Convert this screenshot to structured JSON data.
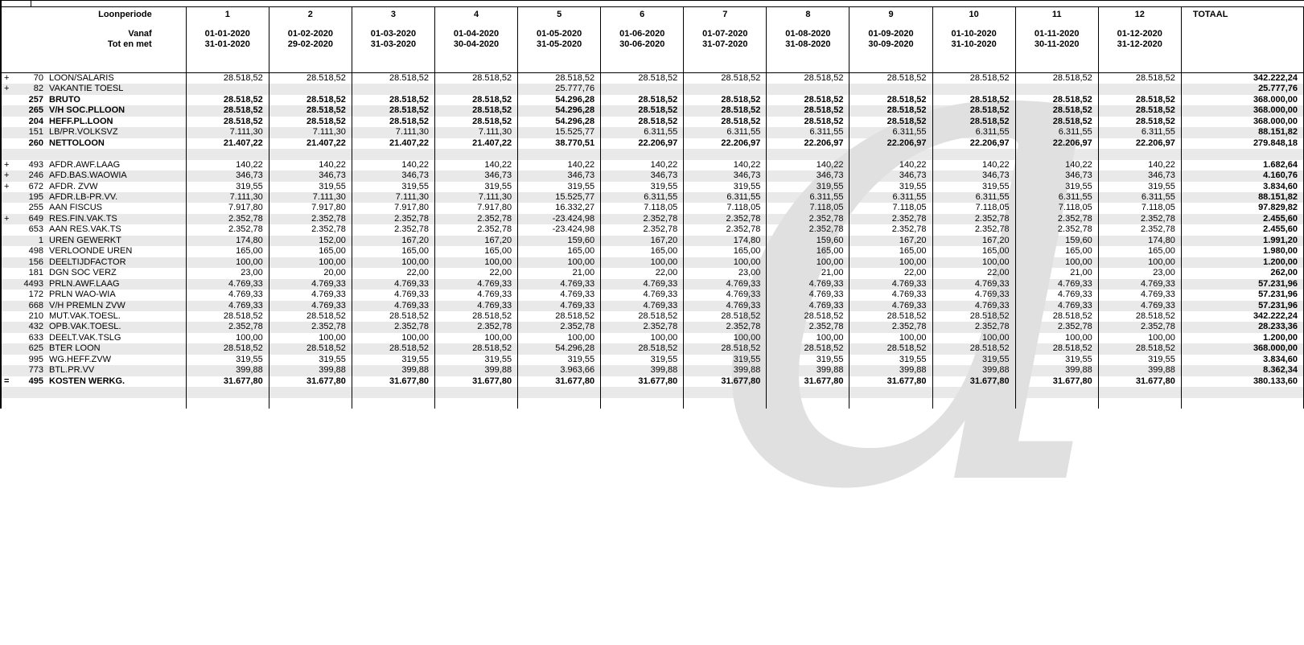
{
  "header": {
    "period_label": "Loonperiode",
    "vanaf_label": "Vanaf",
    "tot_label": "Tot en met",
    "totaal_label": "TOTAAL",
    "periods": [
      {
        "num": "1",
        "from": "01-01-2020",
        "to": "31-01-2020"
      },
      {
        "num": "2",
        "from": "01-02-2020",
        "to": "29-02-2020"
      },
      {
        "num": "3",
        "from": "01-03-2020",
        "to": "31-03-2020"
      },
      {
        "num": "4",
        "from": "01-04-2020",
        "to": "30-04-2020"
      },
      {
        "num": "5",
        "from": "01-05-2020",
        "to": "31-05-2020"
      },
      {
        "num": "6",
        "from": "01-06-2020",
        "to": "30-06-2020"
      },
      {
        "num": "7",
        "from": "01-07-2020",
        "to": "31-07-2020"
      },
      {
        "num": "8",
        "from": "01-08-2020",
        "to": "31-08-2020"
      },
      {
        "num": "9",
        "from": "01-09-2020",
        "to": "30-09-2020"
      },
      {
        "num": "10",
        "from": "01-10-2020",
        "to": "31-10-2020"
      },
      {
        "num": "11",
        "from": "01-11-2020",
        "to": "30-11-2020"
      },
      {
        "num": "12",
        "from": "01-12-2020",
        "to": "31-12-2020"
      }
    ]
  },
  "colors": {
    "stripe": "#e9e9e9",
    "border": "#000000",
    "watermark": "#e0e0e0"
  },
  "watermark": {
    "glyph": "a"
  },
  "rows": [
    {
      "prefix": "+",
      "code": "70",
      "label": "LOON/SALARIS",
      "bold": false,
      "values": [
        "28.518,52",
        "28.518,52",
        "28.518,52",
        "28.518,52",
        "28.518,52",
        "28.518,52",
        "28.518,52",
        "28.518,52",
        "28.518,52",
        "28.518,52",
        "28.518,52",
        "28.518,52"
      ],
      "total": "342.222,24"
    },
    {
      "prefix": "+",
      "code": "82",
      "label": "VAKANTIE TOESL",
      "bold": false,
      "values": [
        "",
        "",
        "",
        "",
        "25.777,76",
        "",
        "",
        "",
        "",
        "",
        "",
        ""
      ],
      "total": "25.777,76"
    },
    {
      "prefix": "",
      "code": "257",
      "label": "BRUTO",
      "bold": true,
      "values": [
        "28.518,52",
        "28.518,52",
        "28.518,52",
        "28.518,52",
        "54.296,28",
        "28.518,52",
        "28.518,52",
        "28.518,52",
        "28.518,52",
        "28.518,52",
        "28.518,52",
        "28.518,52"
      ],
      "total": "368.000,00"
    },
    {
      "prefix": "",
      "code": "265",
      "label": "V/H SOC.PLLOON",
      "bold": true,
      "values": [
        "28.518,52",
        "28.518,52",
        "28.518,52",
        "28.518,52",
        "54.296,28",
        "28.518,52",
        "28.518,52",
        "28.518,52",
        "28.518,52",
        "28.518,52",
        "28.518,52",
        "28.518,52"
      ],
      "total": "368.000,00"
    },
    {
      "prefix": "",
      "code": "204",
      "label": "HEFF.PL.LOON",
      "bold": true,
      "values": [
        "28.518,52",
        "28.518,52",
        "28.518,52",
        "28.518,52",
        "54.296,28",
        "28.518,52",
        "28.518,52",
        "28.518,52",
        "28.518,52",
        "28.518,52",
        "28.518,52",
        "28.518,52"
      ],
      "total": "368.000,00"
    },
    {
      "prefix": "",
      "code": "151",
      "label": "LB/PR.VOLKSVZ",
      "bold": false,
      "values": [
        "7.111,30",
        "7.111,30",
        "7.111,30",
        "7.111,30",
        "15.525,77",
        "6.311,55",
        "6.311,55",
        "6.311,55",
        "6.311,55",
        "6.311,55",
        "6.311,55",
        "6.311,55"
      ],
      "total": "88.151,82"
    },
    {
      "prefix": "",
      "code": "260",
      "label": "NETTOLOON",
      "bold": true,
      "values": [
        "21.407,22",
        "21.407,22",
        "21.407,22",
        "21.407,22",
        "38.770,51",
        "22.206,97",
        "22.206,97",
        "22.206,97",
        "22.206,97",
        "22.206,97",
        "22.206,97",
        "22.206,97"
      ],
      "total": "279.848,18"
    },
    {
      "gap": true
    },
    {
      "prefix": "+",
      "code": "493",
      "label": "AFDR.AWF.LAAG",
      "bold": false,
      "values": [
        "140,22",
        "140,22",
        "140,22",
        "140,22",
        "140,22",
        "140,22",
        "140,22",
        "140,22",
        "140,22",
        "140,22",
        "140,22",
        "140,22"
      ],
      "total": "1.682,64"
    },
    {
      "prefix": "+",
      "code": "246",
      "label": "AFD.BAS.WAOWIA",
      "bold": false,
      "values": [
        "346,73",
        "346,73",
        "346,73",
        "346,73",
        "346,73",
        "346,73",
        "346,73",
        "346,73",
        "346,73",
        "346,73",
        "346,73",
        "346,73"
      ],
      "total": "4.160,76"
    },
    {
      "prefix": "+",
      "code": "672",
      "label": "AFDR. ZVW",
      "bold": false,
      "values": [
        "319,55",
        "319,55",
        "319,55",
        "319,55",
        "319,55",
        "319,55",
        "319,55",
        "319,55",
        "319,55",
        "319,55",
        "319,55",
        "319,55"
      ],
      "total": "3.834,60"
    },
    {
      "prefix": "",
      "code": "195",
      "label": "AFDR.LB-PR.VV.",
      "bold": false,
      "values": [
        "7.111,30",
        "7.111,30",
        "7.111,30",
        "7.111,30",
        "15.525,77",
        "6.311,55",
        "6.311,55",
        "6.311,55",
        "6.311,55",
        "6.311,55",
        "6.311,55",
        "6.311,55"
      ],
      "total": "88.151,82"
    },
    {
      "prefix": "",
      "code": "255",
      "label": "AAN FISCUS",
      "bold": false,
      "values": [
        "7.917,80",
        "7.917,80",
        "7.917,80",
        "7.917,80",
        "16.332,27",
        "7.118,05",
        "7.118,05",
        "7.118,05",
        "7.118,05",
        "7.118,05",
        "7.118,05",
        "7.118,05"
      ],
      "total": "97.829,82"
    },
    {
      "prefix": "+",
      "code": "649",
      "label": "RES.FIN.VAK.TS",
      "bold": false,
      "values": [
        "2.352,78",
        "2.352,78",
        "2.352,78",
        "2.352,78",
        "-23.424,98",
        "2.352,78",
        "2.352,78",
        "2.352,78",
        "2.352,78",
        "2.352,78",
        "2.352,78",
        "2.352,78"
      ],
      "total": "2.455,60"
    },
    {
      "prefix": "",
      "code": "653",
      "label": "AAN RES.VAK.TS",
      "bold": false,
      "values": [
        "2.352,78",
        "2.352,78",
        "2.352,78",
        "2.352,78",
        "-23.424,98",
        "2.352,78",
        "2.352,78",
        "2.352,78",
        "2.352,78",
        "2.352,78",
        "2.352,78",
        "2.352,78"
      ],
      "total": "2.455,60"
    },
    {
      "prefix": "",
      "code": "1",
      "label": "UREN GEWERKT",
      "bold": false,
      "values": [
        "174,80",
        "152,00",
        "167,20",
        "167,20",
        "159,60",
        "167,20",
        "174,80",
        "159,60",
        "167,20",
        "167,20",
        "159,60",
        "174,80"
      ],
      "total": "1.991,20"
    },
    {
      "prefix": "",
      "code": "498",
      "label": "VERLOONDE UREN",
      "bold": false,
      "values": [
        "165,00",
        "165,00",
        "165,00",
        "165,00",
        "165,00",
        "165,00",
        "165,00",
        "165,00",
        "165,00",
        "165,00",
        "165,00",
        "165,00"
      ],
      "total": "1.980,00"
    },
    {
      "prefix": "",
      "code": "156",
      "label": "DEELTIJDFACTOR",
      "bold": false,
      "values": [
        "100,00",
        "100,00",
        "100,00",
        "100,00",
        "100,00",
        "100,00",
        "100,00",
        "100,00",
        "100,00",
        "100,00",
        "100,00",
        "100,00"
      ],
      "total": "1.200,00"
    },
    {
      "prefix": "",
      "code": "181",
      "label": "DGN SOC VERZ",
      "bold": false,
      "values": [
        "23,00",
        "20,00",
        "22,00",
        "22,00",
        "21,00",
        "22,00",
        "23,00",
        "21,00",
        "22,00",
        "22,00",
        "21,00",
        "23,00"
      ],
      "total": "262,00"
    },
    {
      "prefix": "",
      "code": "4493",
      "label": "PRLN.AWF.LAAG",
      "bold": false,
      "values": [
        "4.769,33",
        "4.769,33",
        "4.769,33",
        "4.769,33",
        "4.769,33",
        "4.769,33",
        "4.769,33",
        "4.769,33",
        "4.769,33",
        "4.769,33",
        "4.769,33",
        "4.769,33"
      ],
      "total": "57.231,96"
    },
    {
      "prefix": "",
      "code": "172",
      "label": "PRLN WAO-WIA",
      "bold": false,
      "values": [
        "4.769,33",
        "4.769,33",
        "4.769,33",
        "4.769,33",
        "4.769,33",
        "4.769,33",
        "4.769,33",
        "4.769,33",
        "4.769,33",
        "4.769,33",
        "4.769,33",
        "4.769,33"
      ],
      "total": "57.231,96"
    },
    {
      "prefix": "",
      "code": "668",
      "label": "V/H PREMLN ZVW",
      "bold": false,
      "values": [
        "4.769,33",
        "4.769,33",
        "4.769,33",
        "4.769,33",
        "4.769,33",
        "4.769,33",
        "4.769,33",
        "4.769,33",
        "4.769,33",
        "4.769,33",
        "4.769,33",
        "4.769,33"
      ],
      "total": "57.231,96"
    },
    {
      "prefix": "",
      "code": "210",
      "label": "MUT.VAK.TOESL.",
      "bold": false,
      "values": [
        "28.518,52",
        "28.518,52",
        "28.518,52",
        "28.518,52",
        "28.518,52",
        "28.518,52",
        "28.518,52",
        "28.518,52",
        "28.518,52",
        "28.518,52",
        "28.518,52",
        "28.518,52"
      ],
      "total": "342.222,24"
    },
    {
      "prefix": "",
      "code": "432",
      "label": "OPB.VAK.TOESL.",
      "bold": false,
      "values": [
        "2.352,78",
        "2.352,78",
        "2.352,78",
        "2.352,78",
        "2.352,78",
        "2.352,78",
        "2.352,78",
        "2.352,78",
        "2.352,78",
        "2.352,78",
        "2.352,78",
        "2.352,78"
      ],
      "total": "28.233,36"
    },
    {
      "prefix": "",
      "code": "633",
      "label": "DEELT.VAK.TSLG",
      "bold": false,
      "values": [
        "100,00",
        "100,00",
        "100,00",
        "100,00",
        "100,00",
        "100,00",
        "100,00",
        "100,00",
        "100,00",
        "100,00",
        "100,00",
        "100,00"
      ],
      "total": "1.200,00"
    },
    {
      "prefix": "",
      "code": "625",
      "label": "BTER LOON",
      "bold": false,
      "values": [
        "28.518,52",
        "28.518,52",
        "28.518,52",
        "28.518,52",
        "54.296,28",
        "28.518,52",
        "28.518,52",
        "28.518,52",
        "28.518,52",
        "28.518,52",
        "28.518,52",
        "28.518,52"
      ],
      "total": "368.000,00"
    },
    {
      "prefix": "",
      "code": "995",
      "label": "WG.HEFF.ZVW",
      "bold": false,
      "values": [
        "319,55",
        "319,55",
        "319,55",
        "319,55",
        "319,55",
        "319,55",
        "319,55",
        "319,55",
        "319,55",
        "319,55",
        "319,55",
        "319,55"
      ],
      "total": "3.834,60"
    },
    {
      "prefix": "",
      "code": "773",
      "label": "BTL.PR.VV",
      "bold": false,
      "values": [
        "399,88",
        "399,88",
        "399,88",
        "399,88",
        "3.963,66",
        "399,88",
        "399,88",
        "399,88",
        "399,88",
        "399,88",
        "399,88",
        "399,88"
      ],
      "total": "8.362,34"
    },
    {
      "prefix": "=",
      "code": "495",
      "label": "KOSTEN WERKG.",
      "bold": true,
      "values": [
        "31.677,80",
        "31.677,80",
        "31.677,80",
        "31.677,80",
        "31.677,80",
        "31.677,80",
        "31.677,80",
        "31.677,80",
        "31.677,80",
        "31.677,80",
        "31.677,80",
        "31.677,80"
      ],
      "total": "380.133,60"
    },
    {
      "gap": true
    },
    {
      "gap": true
    }
  ]
}
